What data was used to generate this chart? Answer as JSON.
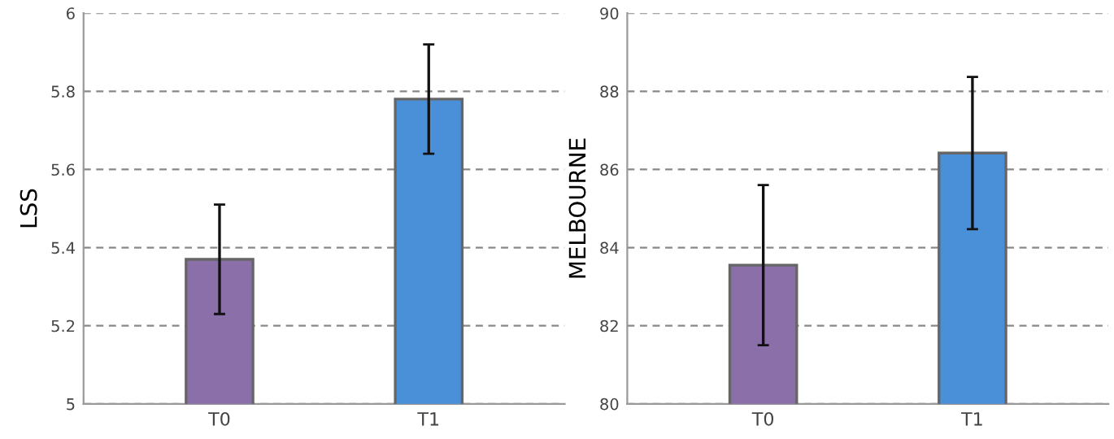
{
  "chart_data": [
    {
      "type": "bar",
      "ylabel": "LSS",
      "categories": [
        "T0",
        "T1"
      ],
      "values": [
        5.37,
        5.78
      ],
      "colors": [
        "#8a6fa8",
        "#4a90d9"
      ],
      "errors": [
        0.14,
        0.14
      ],
      "ylim": [
        5,
        6
      ],
      "yticks": [
        5,
        5.2,
        5.4,
        5.6,
        5.8,
        6
      ],
      "grid": "y"
    },
    {
      "type": "bar",
      "ylabel": "MELBOURNE",
      "categories": [
        "T0",
        "T1"
      ],
      "values": [
        83.55,
        86.42
      ],
      "colors": [
        "#8a6fa8",
        "#4a90d9"
      ],
      "errors": [
        2.05,
        1.95
      ],
      "ylim": [
        80,
        90
      ],
      "yticks": [
        80,
        82,
        84,
        86,
        88,
        90
      ],
      "grid": "y"
    }
  ]
}
